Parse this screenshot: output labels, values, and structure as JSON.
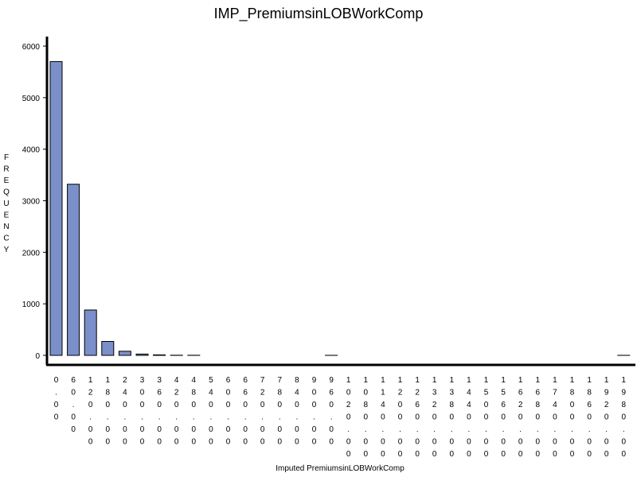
{
  "chart_data": {
    "type": "bar",
    "title": "IMP_PremiumsinLOBWorkComp",
    "xlabel": "Imputed PremiumsinLOBWorkComp",
    "ylabel": "FREQUENCY",
    "ylim": [
      0,
      6000
    ],
    "yticks": [
      "0",
      "1000",
      "2000",
      "3000",
      "4000",
      "5000",
      "6000"
    ],
    "categories": [
      "0.00",
      "60.00",
      "120.00",
      "180.00",
      "240.00",
      "300.00",
      "360.00",
      "420.00",
      "480.00",
      "540.00",
      "600.00",
      "660.00",
      "720.00",
      "780.00",
      "840.00",
      "900.00",
      "960.00",
      "1020.00",
      "1080.00",
      "1140.00",
      "1200.00",
      "1260.00",
      "1320.00",
      "1380.00",
      "1440.00",
      "1500.00",
      "1560.00",
      "1620.00",
      "1680.00",
      "1740.00",
      "1800.00",
      "1860.00",
      "1920.00",
      "1980.00"
    ],
    "values": [
      5700,
      3320,
      880,
      270,
      80,
      25,
      10,
      3,
      2,
      0,
      0,
      0,
      0,
      0,
      0,
      0,
      1,
      0,
      0,
      0,
      0,
      0,
      0,
      0,
      0,
      0,
      0,
      0,
      0,
      0,
      0,
      0,
      0,
      1
    ],
    "bar_color": "#7b8fcb",
    "grid": false
  }
}
